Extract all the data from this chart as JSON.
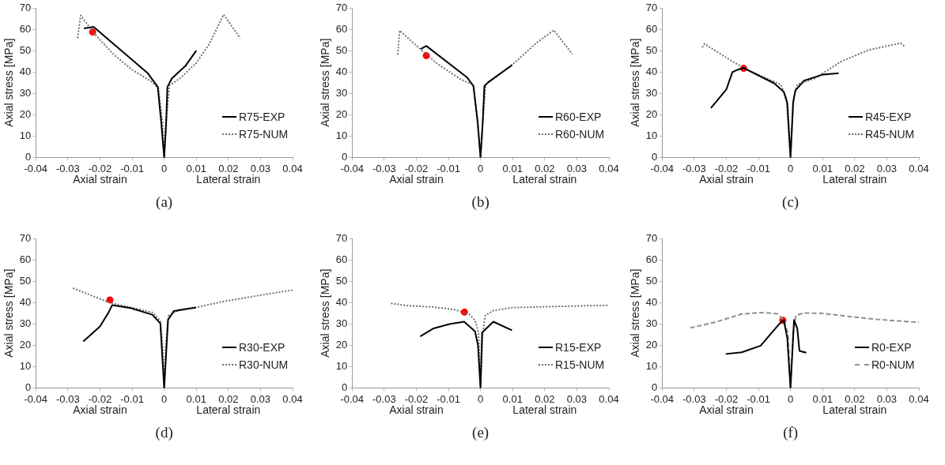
{
  "chart_data": [
    {
      "type": "line",
      "xlabel": "Axial strain",
      "ylabel": "Axial stress [MPa]",
      "annotations": [
        "Lateral strain",
        "(a)"
      ],
      "xlim": [
        -0.04,
        0.04
      ],
      "xticks": [
        -0.04,
        -0.03,
        -0.02,
        -0.01,
        0,
        0.01,
        0.02,
        0.03,
        0.04
      ],
      "ylim": [
        0,
        70
      ],
      "yticks": [
        0,
        10,
        20,
        30,
        40,
        50,
        60,
        70
      ],
      "legend": "bottom right",
      "marker": "none",
      "series": [
        {
          "name": "R75-EXP",
          "color": "#000000",
          "line_style": "solid",
          "x": [
            -0.025,
            -0.022,
            -0.0051,
            -0.002,
            -0.0009,
            0,
            0.0006,
            0.001,
            0.0024,
            0.0066,
            0.01
          ],
          "values": [
            60.4,
            61.1,
            39.4,
            33,
            16,
            0,
            16,
            33,
            37,
            42.8,
            50
          ]
        },
        {
          "name": "R75-NUM",
          "color": "#707070",
          "line_style": "dotted",
          "x": [
            -0.027,
            -0.026,
            -0.0218,
            -0.016,
            -0.0101,
            -0.0043,
            -0.0018,
            -0.0005,
            0,
            0.0006,
            0.0016,
            0.0049,
            0.0099,
            0.0141,
            0.0185,
            0.0237
          ],
          "values": [
            55.8,
            66.5,
            58,
            48.6,
            41.1,
            35.9,
            32.4,
            16,
            0,
            16,
            33.6,
            37,
            44,
            53.2,
            66.9,
            55.8
          ]
        },
        {
          "type": "scatter",
          "marker": "circle",
          "color": "#ff0000",
          "x": [
            -0.0223
          ],
          "values": [
            58.7
          ]
        }
      ]
    },
    {
      "type": "line",
      "xlabel": "Axial strain",
      "ylabel": "Axial stress [MPa]",
      "annotations": [
        "Lateral strain",
        "(b)"
      ],
      "xlim": [
        -0.04,
        0.04
      ],
      "xticks": [
        -0.04,
        -0.03,
        -0.02,
        -0.01,
        0,
        0.01,
        0.02,
        0.03,
        0.04
      ],
      "ylim": [
        0,
        70
      ],
      "yticks": [
        0,
        10,
        20,
        30,
        40,
        50,
        60,
        70
      ],
      "legend": "bottom right",
      "marker": "none",
      "series": [
        {
          "name": "R60-EXP",
          "color": "#000000",
          "line_style": "solid",
          "x": [
            -0.0186,
            -0.0169,
            -0.0042,
            -0.0022,
            -0.0009,
            0,
            0.0007,
            0.0012,
            0.0024,
            0.0099
          ],
          "values": [
            50.7,
            52.2,
            37.5,
            33.4,
            16.7,
            0,
            16.7,
            33.4,
            35.2,
            43.3
          ]
        },
        {
          "name": "R60-NUM",
          "color": "#707070",
          "line_style": "dotted",
          "x": [
            -0.0258,
            -0.0252,
            -0.0192,
            -0.0134,
            -0.0059,
            -0.0022,
            -0.0009,
            0,
            0.0007,
            0.0016,
            0.0057,
            0.0107,
            0.0174,
            0.0228,
            0.0286
          ],
          "values": [
            48.1,
            59.4,
            51.3,
            43.8,
            36.3,
            34,
            16.7,
            0,
            16.7,
            34,
            38.6,
            44.4,
            53.6,
            59.6,
            48.4
          ]
        },
        {
          "type": "scatter",
          "marker": "circle",
          "color": "#ff0000",
          "x": [
            -0.0169
          ],
          "values": [
            47.6
          ]
        }
      ]
    },
    {
      "type": "line",
      "xlabel": "Axial strain",
      "ylabel": "Axial stress [MPa]",
      "annotations": [
        "Lateral strain",
        "(c)"
      ],
      "xlim": [
        -0.04,
        0.04
      ],
      "xticks": [
        -0.04,
        -0.03,
        -0.02,
        -0.01,
        0,
        0.01,
        0.02,
        0.03,
        0.04
      ],
      "ylim": [
        0,
        70
      ],
      "yticks": [
        0,
        10,
        20,
        30,
        40,
        50,
        60,
        70
      ],
      "legend": "bottom right",
      "marker": "none",
      "series": [
        {
          "name": "R45-EXP",
          "color": "#000000",
          "line_style": "solid",
          "x": [
            -0.0248,
            -0.02,
            -0.0181,
            -0.0164,
            -0.0146,
            -0.0051,
            -0.0021,
            -0.001,
            0,
            0.0008,
            0.0015,
            0.0042,
            0.0101,
            0.015
          ],
          "values": [
            23.1,
            31.8,
            39.9,
            41.1,
            41.9,
            34.7,
            30.7,
            25.5,
            0,
            25.5,
            31.3,
            35.9,
            38.8,
            39.4
          ]
        },
        {
          "name": "R45-NUM",
          "color": "#707070",
          "line_style": "dotted",
          "x": [
            -0.0275,
            -0.0268,
            -0.0202,
            -0.0146,
            -0.0084,
            -0.003,
            -0.0013,
            0,
            0.001,
            0.0021,
            0.0076,
            0.016,
            0.0244,
            0.0343,
            0.0358
          ],
          "values": [
            51.5,
            53.2,
            46.9,
            41.9,
            37.6,
            34.1,
            27.8,
            0,
            27.8,
            34.1,
            37,
            45.1,
            50.3,
            53.5,
            51.7
          ]
        },
        {
          "type": "scatter",
          "marker": "circle",
          "color": "#ff0000",
          "x": [
            -0.0146
          ],
          "values": [
            41.7
          ]
        }
      ]
    },
    {
      "type": "line",
      "xlabel": "Axial strain",
      "ylabel": "Axial stress [MPa]",
      "annotations": [
        "Lateral strain",
        "(d)"
      ],
      "xlim": [
        -0.04,
        0.04
      ],
      "xticks": [
        -0.04,
        -0.03,
        -0.02,
        -0.01,
        0,
        0.01,
        0.02,
        0.03,
        0.04
      ],
      "ylim": [
        0,
        70
      ],
      "yticks": [
        0,
        10,
        20,
        30,
        40,
        50,
        60,
        70
      ],
      "legend": "bottom right",
      "marker": "none",
      "series": [
        {
          "name": "R30-EXP",
          "color": "#000000",
          "line_style": "solid",
          "x": [
            -0.0252,
            -0.02,
            -0.0173,
            -0.0162,
            -0.0104,
            -0.0037,
            -0.0012,
            0,
            0.0012,
            0.003,
            0.0099
          ],
          "values": [
            21.8,
            28.8,
            35.4,
            38.8,
            37.4,
            34.3,
            30.2,
            0,
            31.9,
            36,
            37.7
          ]
        },
        {
          "name": "R30-NUM",
          "color": "#707070",
          "line_style": "dotted",
          "x": [
            -0.0284,
            -0.0171,
            -0.0104,
            -0.0037,
            -0.0012,
            -0.0005,
            0,
            0.0005,
            0.0013,
            0.0047,
            0.0099,
            0.0189,
            0.0315,
            0.04
          ],
          "values": [
            46.7,
            40,
            37.7,
            35.4,
            31.4,
            19.8,
            0,
            19.8,
            33.7,
            36.6,
            37.7,
            40.6,
            43.8,
            45.8
          ]
        },
        {
          "type": "scatter",
          "marker": "circle",
          "color": "#ff0000",
          "x": [
            -0.0169
          ],
          "values": [
            41.2
          ]
        }
      ]
    },
    {
      "type": "line",
      "xlabel": "Axial strain",
      "ylabel": "Axial stress [MPa]",
      "annotations": [
        "Lateral strain",
        "(e)"
      ],
      "xlim": [
        -0.04,
        0.04
      ],
      "xticks": [
        -0.04,
        -0.03,
        -0.02,
        -0.01,
        0,
        0.01,
        0.02,
        0.03,
        0.04
      ],
      "ylim": [
        0,
        70
      ],
      "yticks": [
        0,
        10,
        20,
        30,
        40,
        50,
        60,
        70
      ],
      "legend": "bottom right",
      "marker": "none",
      "series": [
        {
          "name": "R15-EXP",
          "color": "#000000",
          "line_style": "solid",
          "x": [
            -0.0188,
            -0.0146,
            -0.0097,
            -0.0051,
            -0.0017,
            -0.0008,
            0,
            0.0005,
            0.004,
            0.0098
          ],
          "values": [
            24.1,
            27.9,
            29.9,
            31,
            26.5,
            20.2,
            0,
            25.9,
            31,
            27
          ]
        },
        {
          "name": "R15-NUM",
          "color": "#707070",
          "line_style": "dotted",
          "x": [
            -0.0279,
            -0.0225,
            -0.015,
            -0.0084,
            -0.0035,
            -0.0017,
            -0.0006,
            0,
            0.0007,
            0.0015,
            0.004,
            0.0098,
            0.0222,
            0.04
          ],
          "values": [
            39.6,
            38.5,
            37.9,
            36.8,
            34.5,
            31.6,
            25.9,
            0,
            25.9,
            33.9,
            36.2,
            37.6,
            38.1,
            38.7
          ]
        },
        {
          "type": "scatter",
          "marker": "circle",
          "color": "#ff0000",
          "x": [
            -0.005
          ],
          "values": [
            35.5
          ]
        }
      ]
    },
    {
      "type": "line",
      "xlabel": "Axial strain",
      "ylabel": "Axial stress [MPa]",
      "annotations": [
        "Lateral strain",
        "(f)"
      ],
      "xlim": [
        -0.04,
        0.04
      ],
      "xticks": [
        -0.04,
        -0.03,
        -0.02,
        -0.01,
        0,
        0.01,
        0.02,
        0.03,
        0.04
      ],
      "ylim": [
        0,
        70
      ],
      "yticks": [
        0,
        10,
        20,
        30,
        40,
        50,
        60,
        70
      ],
      "legend": "bottom right",
      "marker": "none",
      "series": [
        {
          "name": "R0-EXP",
          "color": "#000000",
          "line_style": "solid",
          "x": [
            -0.0202,
            -0.0152,
            -0.0093,
            -0.0034,
            -0.0021,
            -0.001,
            0,
            0.0011,
            0.0021,
            0.0028,
            0.0049
          ],
          "values": [
            15.9,
            16.7,
            19.8,
            30.1,
            31.8,
            23.4,
            0,
            31.8,
            27.9,
            17.3,
            16.5
          ]
        },
        {
          "name": "R0-NUM",
          "color": "#909090",
          "line_style": "dashed",
          "x": [
            -0.0313,
            -0.0236,
            -0.0152,
            -0.0093,
            -0.0042,
            -0.0021,
            -0.0008,
            0,
            0.0008,
            0.0017,
            0.0042,
            0.0101,
            0.0185,
            0.0269,
            0.04
          ],
          "values": [
            28.1,
            30.7,
            34.6,
            35.3,
            34.8,
            31.8,
            25.6,
            0,
            25.6,
            34,
            35.1,
            34.9,
            33.4,
            32.1,
            30.7
          ]
        },
        {
          "type": "scatter",
          "marker": "circle",
          "color": "#ff0000",
          "x": [
            -0.0024
          ],
          "values": [
            31.7
          ]
        }
      ]
    }
  ]
}
